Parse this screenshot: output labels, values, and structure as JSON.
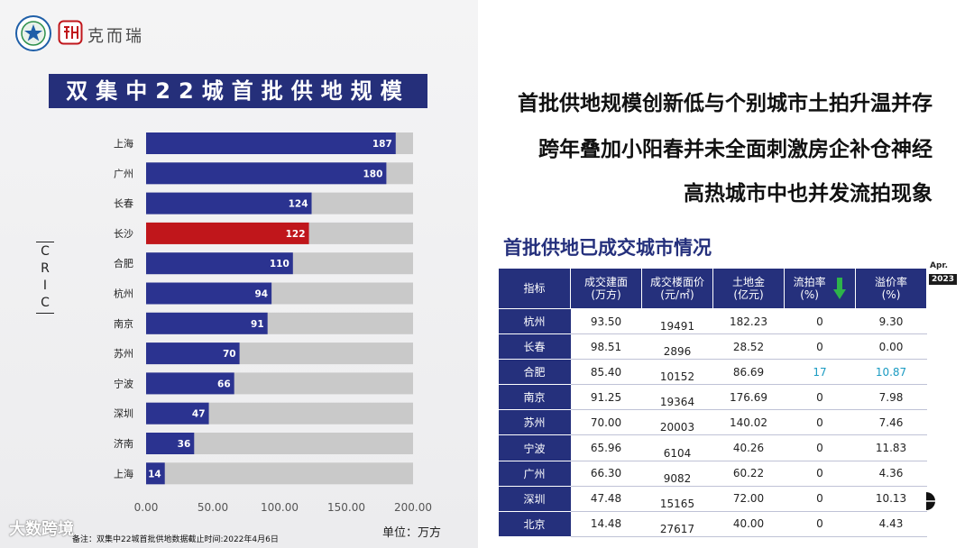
{
  "brand": {
    "name": "克而瑞",
    "side_mark": "CRIC"
  },
  "left": {
    "title": "双集中22城首批供地规模",
    "unit": "单位：万方",
    "footnote": "备注：双集中22城首批供地数据截止时间:2022年4月6日",
    "watermark": "大数跨境"
  },
  "chart_data": {
    "type": "bar",
    "orientation": "horizontal",
    "categories": [
      "上海",
      "广州",
      "长春",
      "长沙",
      "合肥",
      "杭州",
      "南京",
      "苏州",
      "宁波",
      "深圳",
      "济南",
      "上海"
    ],
    "values": [
      187,
      180,
      124,
      122,
      110,
      94,
      91,
      70,
      66,
      47,
      36,
      14
    ],
    "highlight_index": 3,
    "x_range": [
      0,
      200
    ],
    "x_ticks": [
      "0.00",
      "50.00",
      "100.00",
      "150.00",
      "200.00"
    ],
    "colors": {
      "bar": "#2b3390",
      "highlight": "#c0161b",
      "track": "#c9c9c9"
    },
    "grid": false
  },
  "headlines": [
    "首批供地规模创新低与个别城市土拍升温并存",
    "跨年叠加小阳春并未全面刺激房企补仓神经",
    "高热城市中也并发流拍现象"
  ],
  "table": {
    "title": "首批供地已成交城市情况",
    "date_label": "Apr.",
    "year_label": "2023",
    "headers": [
      [
        "指标"
      ],
      [
        "成交建面",
        "(万方)"
      ],
      [
        "成交楼面价",
        "(元/㎡)"
      ],
      [
        "土地金",
        "(亿元)"
      ],
      [
        "流拍率",
        "(%)"
      ],
      [
        "溢价率",
        "(%)"
      ]
    ],
    "rows": [
      [
        "杭州",
        "93.50",
        "19491",
        "182.23",
        "0",
        "9.30"
      ],
      [
        "长春",
        "98.51",
        "2896",
        "28.52",
        "0",
        "0.00"
      ],
      [
        "合肥",
        "85.40",
        "10152",
        "86.69",
        "17",
        "10.87"
      ],
      [
        "南京",
        "91.25",
        "19364",
        "176.69",
        "0",
        "7.98"
      ],
      [
        "苏州",
        "70.00",
        "20003",
        "140.02",
        "0",
        "7.46"
      ],
      [
        "宁波",
        "65.96",
        "6104",
        "40.26",
        "0",
        "11.83"
      ],
      [
        "广州",
        "66.30",
        "9082",
        "60.22",
        "0",
        "4.36"
      ],
      [
        "深圳",
        "47.48",
        "15165",
        "72.00",
        "0",
        "10.13"
      ],
      [
        "北京",
        "14.48",
        "27617",
        "40.00",
        "0",
        "4.43"
      ]
    ],
    "highlight_row": 2,
    "colors": {
      "header": "#25307c",
      "arrow": "#2db34a",
      "highlight_text": "#1a9bc2"
    }
  }
}
